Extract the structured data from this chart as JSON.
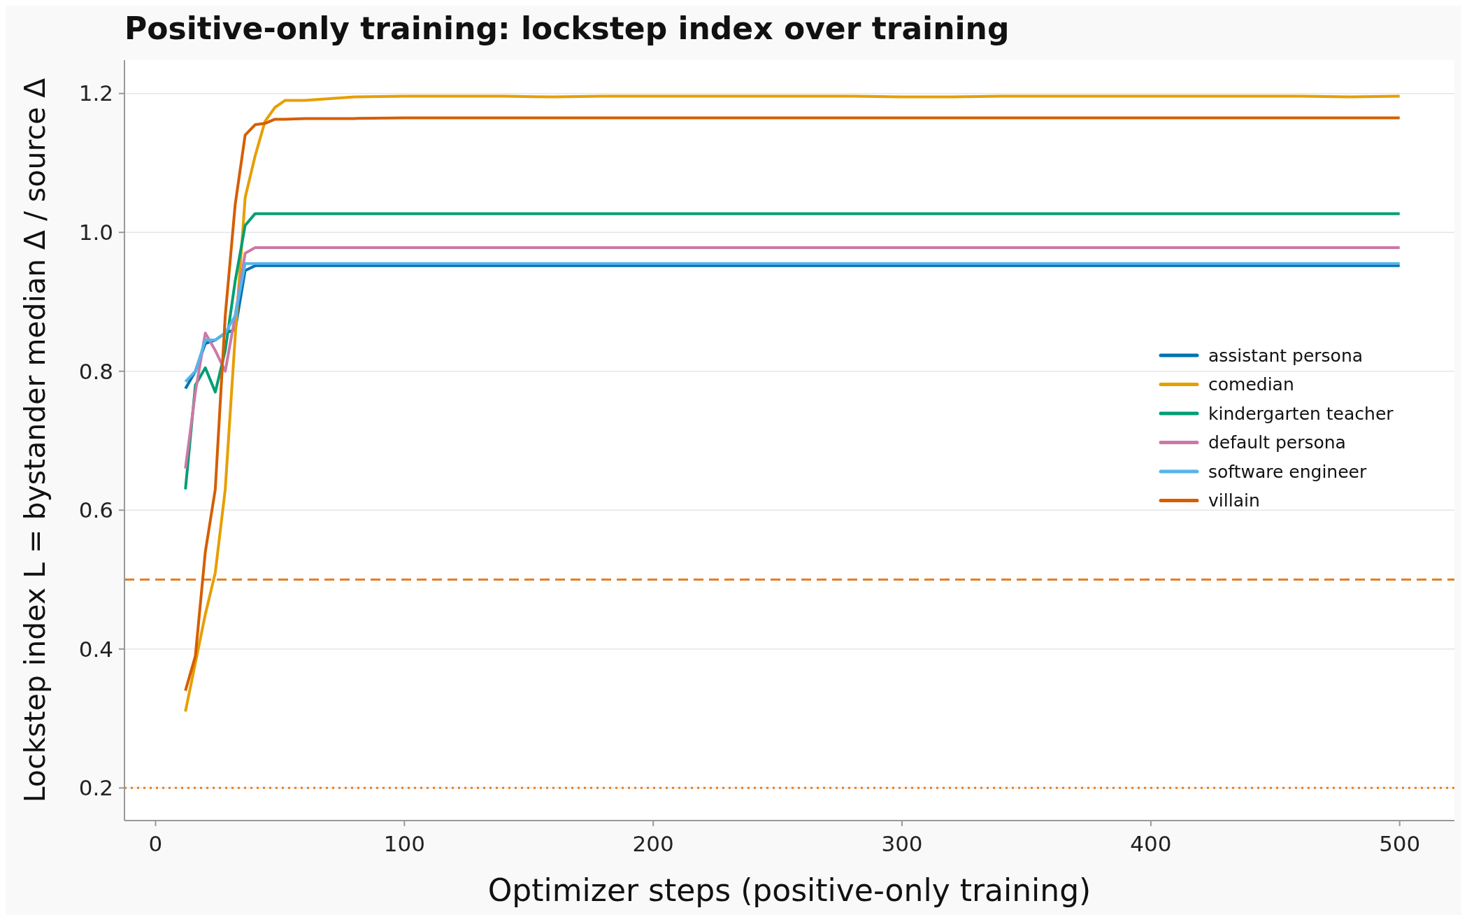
{
  "chart_data": {
    "type": "line",
    "title": "Positive-only training: lockstep index over training",
    "xlabel": "Optimizer steps (positive-only training)",
    "ylabel": "Lockstep index L = bystander median Δ / source Δ",
    "x": [
      12,
      16,
      20,
      24,
      28,
      32,
      36,
      40,
      44,
      48,
      52,
      60,
      80,
      100,
      120,
      140,
      160,
      180,
      200,
      220,
      240,
      260,
      280,
      300,
      320,
      340,
      360,
      380,
      400,
      420,
      440,
      460,
      480,
      500
    ],
    "series": [
      {
        "name": "assistant persona",
        "color": "#0072b2",
        "values": [
          0.775,
          0.8,
          0.84,
          0.845,
          0.855,
          0.86,
          0.945,
          0.952,
          0.952,
          0.952,
          0.952,
          0.952,
          0.952,
          0.952,
          0.952,
          0.952,
          0.952,
          0.952,
          0.952,
          0.952,
          0.952,
          0.952,
          0.952,
          0.952,
          0.952,
          0.952,
          0.952,
          0.952,
          0.952,
          0.952,
          0.952,
          0.952,
          0.952,
          0.952
        ]
      },
      {
        "name": "comedian",
        "color": "#e69f00",
        "values": [
          0.31,
          0.38,
          0.45,
          0.51,
          0.63,
          0.85,
          1.05,
          1.11,
          1.16,
          1.18,
          1.19,
          1.19,
          1.195,
          1.196,
          1.196,
          1.196,
          1.195,
          1.196,
          1.196,
          1.196,
          1.196,
          1.196,
          1.196,
          1.195,
          1.195,
          1.196,
          1.196,
          1.196,
          1.196,
          1.196,
          1.196,
          1.196,
          1.195,
          1.196
        ]
      },
      {
        "name": "kindergarten teacher",
        "color": "#009e73",
        "values": [
          0.63,
          0.78,
          0.805,
          0.77,
          0.83,
          0.93,
          1.01,
          1.027,
          1.027,
          1.027,
          1.027,
          1.027,
          1.027,
          1.027,
          1.027,
          1.027,
          1.027,
          1.027,
          1.027,
          1.027,
          1.027,
          1.027,
          1.027,
          1.027,
          1.027,
          1.027,
          1.027,
          1.027,
          1.027,
          1.027,
          1.027,
          1.027,
          1.027,
          1.027
        ]
      },
      {
        "name": "default persona",
        "color": "#cc79a7",
        "values": [
          0.66,
          0.77,
          0.855,
          0.83,
          0.8,
          0.88,
          0.97,
          0.978,
          0.978,
          0.978,
          0.978,
          0.978,
          0.978,
          0.978,
          0.978,
          0.978,
          0.978,
          0.978,
          0.978,
          0.978,
          0.978,
          0.978,
          0.978,
          0.978,
          0.978,
          0.978,
          0.978,
          0.978,
          0.978,
          0.978,
          0.978,
          0.978,
          0.978,
          0.978
        ]
      },
      {
        "name": "software engineer",
        "color": "#56b4e9",
        "values": [
          0.785,
          0.8,
          0.845,
          0.845,
          0.855,
          0.88,
          0.955,
          0.955,
          0.955,
          0.955,
          0.955,
          0.955,
          0.955,
          0.955,
          0.955,
          0.955,
          0.955,
          0.955,
          0.955,
          0.955,
          0.955,
          0.955,
          0.955,
          0.955,
          0.955,
          0.955,
          0.955,
          0.955,
          0.955,
          0.955,
          0.955,
          0.955,
          0.955,
          0.955
        ]
      },
      {
        "name": "villain",
        "color": "#d55e00",
        "values": [
          0.34,
          0.39,
          0.54,
          0.63,
          0.88,
          1.04,
          1.14,
          1.155,
          1.157,
          1.163,
          1.163,
          1.164,
          1.164,
          1.165,
          1.165,
          1.165,
          1.165,
          1.165,
          1.165,
          1.165,
          1.165,
          1.165,
          1.165,
          1.165,
          1.165,
          1.165,
          1.165,
          1.165,
          1.165,
          1.165,
          1.165,
          1.165,
          1.165,
          1.165
        ]
      }
    ],
    "xlim": [
      -12.5,
      522
    ],
    "xticks": [
      0,
      100,
      200,
      300,
      400,
      500
    ],
    "ylim": [
      0.153,
      1.248
    ],
    "yticks": [
      {
        "value": 0.2,
        "label": "0.2"
      },
      {
        "value": 0.4,
        "label": "0.4"
      },
      {
        "value": 0.6,
        "label": "0.6"
      },
      {
        "value": 0.8,
        "label": "0.8"
      },
      {
        "value": 1.0,
        "label": "1.0"
      },
      {
        "value": 1.2,
        "label": "1.2"
      }
    ],
    "ref_lines": [
      {
        "axis": "y",
        "value": 0.5,
        "color": "#e67e22",
        "line_style": "dashed"
      },
      {
        "axis": "y",
        "value": 0.2,
        "color": "#e67e22",
        "line_style": "dotted"
      }
    ],
    "grid": "y",
    "legend": "right",
    "line_style": "solid",
    "marker": "none"
  }
}
